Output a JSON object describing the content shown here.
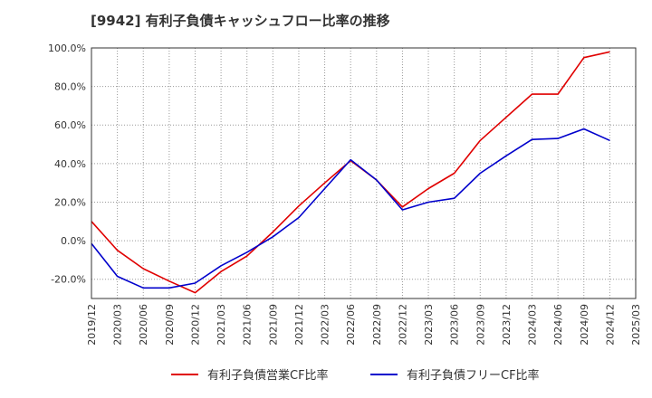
{
  "chart_data": {
    "type": "line",
    "title": "[9942]  有利子負債キャッシュフロー比率の推移",
    "x": [
      "2019/12",
      "2020/03",
      "2020/06",
      "2020/09",
      "2020/12",
      "2021/03",
      "2021/06",
      "2021/09",
      "2021/12",
      "2022/03",
      "2022/06",
      "2022/09",
      "2022/12",
      "2023/03",
      "2023/06",
      "2023/09",
      "2023/12",
      "2024/03",
      "2024/06",
      "2024/09",
      "2024/12"
    ],
    "x_ticks": [
      "2019/12",
      "2020/03",
      "2020/06",
      "2020/09",
      "2020/12",
      "2021/03",
      "2021/06",
      "2021/09",
      "2021/12",
      "2022/03",
      "2022/06",
      "2022/09",
      "2022/12",
      "2023/03",
      "2023/06",
      "2023/09",
      "2023/12",
      "2024/03",
      "2024/06",
      "2024/09",
      "2024/12",
      "2025/03"
    ],
    "y_ticks": [
      "100.0%",
      "80.0%",
      "60.0%",
      "40.0%",
      "20.0%",
      "0.0%",
      "-20.0%"
    ],
    "y_tick_values": [
      100,
      80,
      60,
      40,
      20,
      0,
      -20
    ],
    "ylim": [
      -30,
      100
    ],
    "grid": true,
    "legend_position": "bottom",
    "series": [
      {
        "name": "有利子負債営業CF比率",
        "color": "#e00000",
        "values": [
          10.0,
          -5.0,
          -14.5,
          -21.0,
          -27.0,
          -16.0,
          -8.0,
          4.5,
          18.0,
          30.0,
          41.5,
          31.5,
          17.5,
          27.0,
          35.0,
          52.0,
          64.0,
          76.0,
          76.0,
          95.0,
          98.0
        ]
      },
      {
        "name": "有利子負債フリーCF比率",
        "color": "#0000cc",
        "values": [
          -1.5,
          -18.5,
          -24.5,
          -24.5,
          -22.0,
          -13.0,
          -6.0,
          2.0,
          12.0,
          27.0,
          42.0,
          31.5,
          16.0,
          20.0,
          22.0,
          35.0,
          44.0,
          52.5,
          53.0,
          58.0,
          52.0
        ]
      }
    ]
  }
}
